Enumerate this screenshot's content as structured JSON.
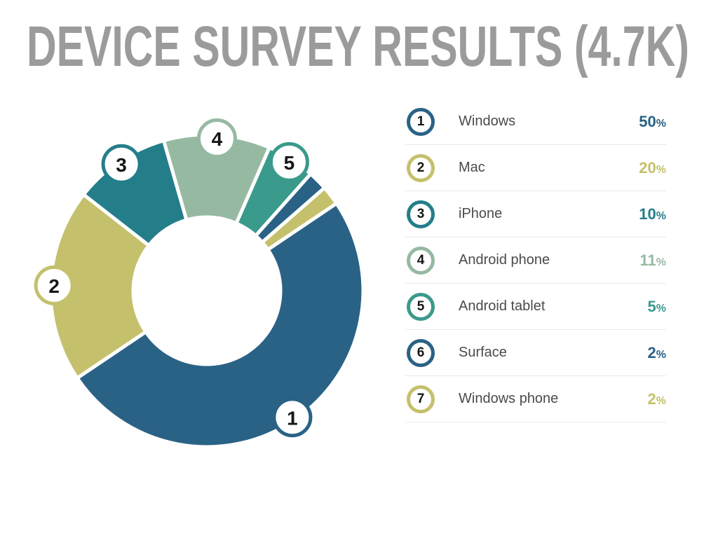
{
  "title": "DEVICE SURVEY RESULTS (4.7K)",
  "chart_data": {
    "type": "pie",
    "subtype": "donut",
    "title": "DEVICE SURVEY RESULTS (4.7K)",
    "total_responses_label": "4.7K",
    "unit": "%",
    "start_angle_deg": 56,
    "direction": "clockwise",
    "inner_radius_ratio": 0.47,
    "gap_color": "#ffffff",
    "categories": [
      "Windows",
      "Mac",
      "iPhone",
      "Android phone",
      "Android tablet",
      "Surface",
      "Windows phone"
    ],
    "values": [
      50,
      20,
      10,
      11,
      5,
      2,
      2
    ],
    "slices": [
      {
        "rank": "1",
        "label": "Windows",
        "value": 50,
        "display": "50%",
        "color": "#2a6286",
        "badge": true
      },
      {
        "rank": "2",
        "label": "Mac",
        "value": 20,
        "display": "20%",
        "color": "#c5c06c",
        "badge": true
      },
      {
        "rank": "3",
        "label": "iPhone",
        "value": 10,
        "display": "10%",
        "color": "#247e8a",
        "badge": true
      },
      {
        "rank": "4",
        "label": "Android phone",
        "value": 11,
        "display": "11%",
        "color": "#96b9a2",
        "badge": true
      },
      {
        "rank": "5",
        "label": "Android tablet",
        "value": 5,
        "display": "5%",
        "color": "#3a9a8b",
        "badge": true
      },
      {
        "rank": "6",
        "label": "Surface",
        "value": 2,
        "display": "2%",
        "color": "#2a6286",
        "badge": false
      },
      {
        "rank": "7",
        "label": "Windows phone",
        "value": 2,
        "display": "2%",
        "color": "#c5c06c",
        "badge": false
      }
    ],
    "legend_position": "right",
    "title_color": "#9b9b9b",
    "label_color": "#4a4a4a"
  }
}
